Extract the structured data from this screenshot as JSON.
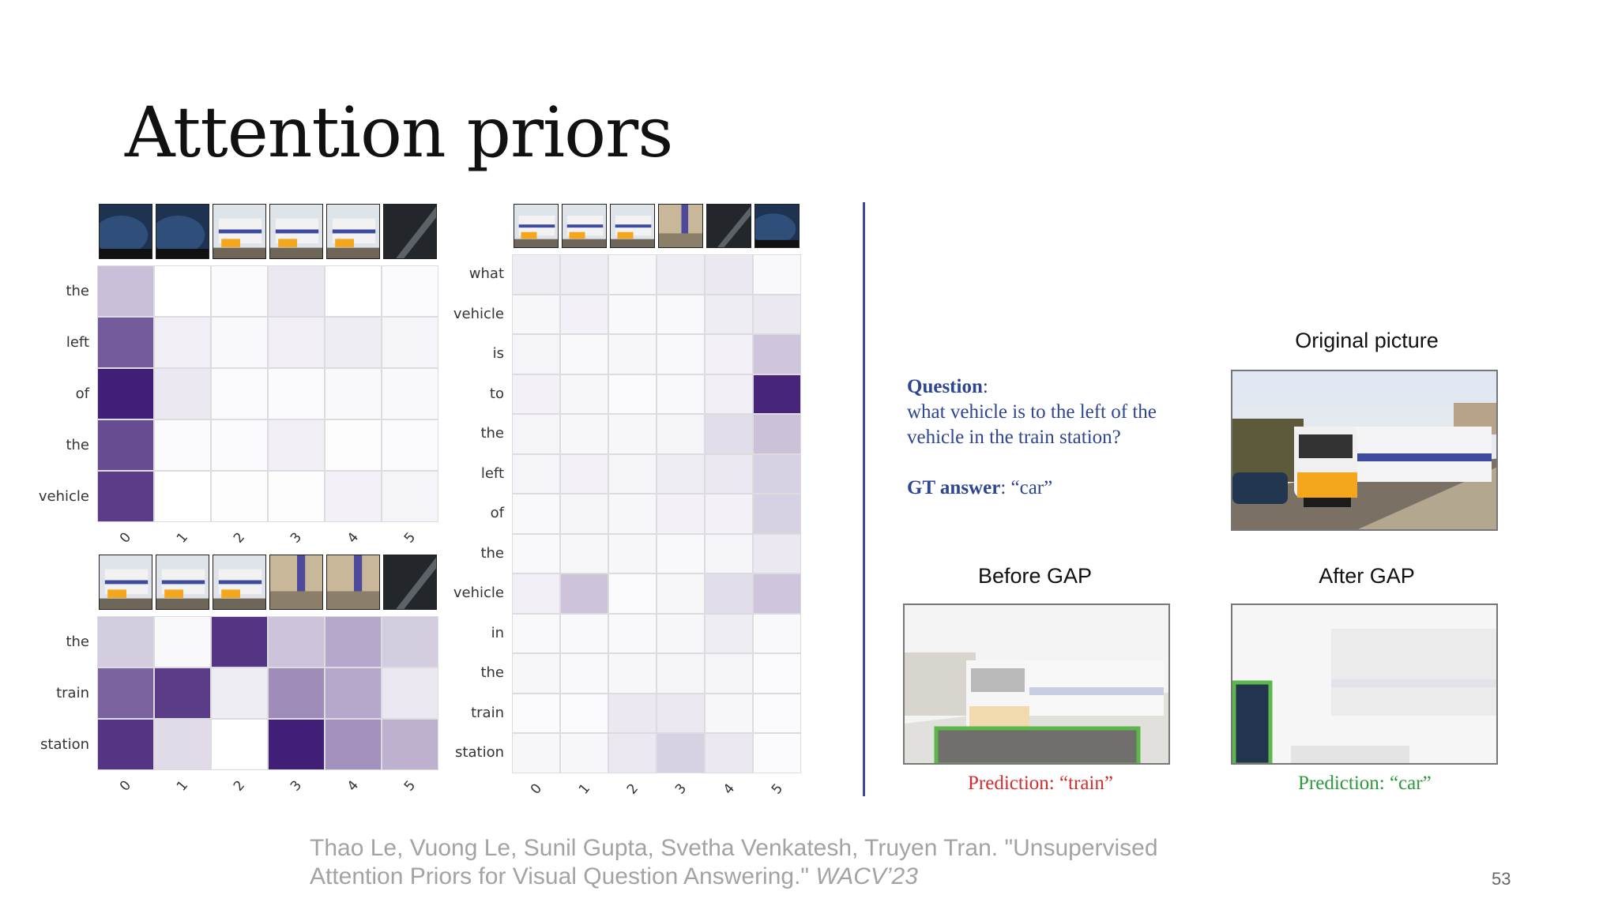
{
  "title": "Attention priors",
  "heatmaps": {
    "top_left": {
      "rows": [
        "the",
        "left",
        "of",
        "the",
        "vehicle"
      ],
      "cols": [
        "0",
        "1",
        "2",
        "3",
        "4",
        "5"
      ],
      "thumbs": [
        "car",
        "car",
        "train",
        "train",
        "train",
        "dark"
      ],
      "values": [
        [
          0.28,
          0.0,
          0.02,
          0.1,
          0.0,
          0.02
        ],
        [
          0.72,
          0.07,
          0.03,
          0.07,
          0.08,
          0.05
        ],
        [
          0.98,
          0.1,
          0.02,
          0.02,
          0.03,
          0.03
        ],
        [
          0.78,
          0.02,
          0.02,
          0.07,
          0.01,
          0.02
        ],
        [
          0.85,
          0.0,
          0.01,
          0.01,
          0.06,
          0.05
        ]
      ]
    },
    "bottom_left": {
      "rows": [
        "the",
        "train",
        "station"
      ],
      "cols": [
        "0",
        "1",
        "2",
        "3",
        "4",
        "5"
      ],
      "thumbs": [
        "train",
        "train",
        "train",
        "platform",
        "platform",
        "dark"
      ],
      "values": [
        [
          0.22,
          0.03,
          0.88,
          0.26,
          0.38,
          0.22
        ],
        [
          0.68,
          0.85,
          0.08,
          0.5,
          0.38,
          0.1
        ],
        [
          0.88,
          0.16,
          0.0,
          0.98,
          0.48,
          0.34
        ]
      ]
    },
    "middle": {
      "rows": [
        "what",
        "vehicle",
        "is",
        "to",
        "the",
        "left",
        "of",
        "the",
        "vehicle",
        "in",
        "the",
        "train",
        "station"
      ],
      "cols": [
        "0",
        "1",
        "2",
        "3",
        "4",
        "5"
      ],
      "thumbs": [
        "train",
        "train",
        "train",
        "platform",
        "dark",
        "car"
      ],
      "values": [
        [
          0.08,
          0.08,
          0.04,
          0.08,
          0.1,
          0.03
        ],
        [
          0.04,
          0.06,
          0.03,
          0.03,
          0.08,
          0.1
        ],
        [
          0.05,
          0.03,
          0.04,
          0.03,
          0.06,
          0.25
        ],
        [
          0.06,
          0.04,
          0.02,
          0.03,
          0.07,
          0.95
        ],
        [
          0.05,
          0.04,
          0.04,
          0.05,
          0.15,
          0.27
        ],
        [
          0.05,
          0.06,
          0.05,
          0.08,
          0.1,
          0.2
        ],
        [
          0.03,
          0.05,
          0.04,
          0.06,
          0.06,
          0.2
        ],
        [
          0.03,
          0.04,
          0.04,
          0.03,
          0.05,
          0.1
        ],
        [
          0.07,
          0.26,
          0.02,
          0.04,
          0.15,
          0.25
        ],
        [
          0.03,
          0.03,
          0.03,
          0.04,
          0.08,
          0.03
        ],
        [
          0.04,
          0.03,
          0.04,
          0.05,
          0.05,
          0.02
        ],
        [
          0.02,
          0.02,
          0.1,
          0.1,
          0.04,
          0.02
        ],
        [
          0.04,
          0.04,
          0.1,
          0.2,
          0.1,
          0.02
        ]
      ]
    }
  },
  "question": {
    "label": "Question",
    "text": "what vehicle is to the left of the vehicle in the train station?",
    "gt_label": "GT answer",
    "gt_value": ": “car”"
  },
  "panels": {
    "original": "Original picture",
    "before": "Before GAP",
    "after": "After GAP"
  },
  "predictions": {
    "before": "Prediction: “train”",
    "after": "Prediction: “car”"
  },
  "colors": {
    "heat": "#3d1a73",
    "question": "#2e4594",
    "pred_bad": "#d32f2f",
    "pred_good": "#2e9a3c",
    "box": "#5cb84a"
  },
  "citation": {
    "text": "Thao Le, Vuong Le, Sunil Gupta, Svetha Venkatesh, Truyen Tran. \"Unsupervised Attention Priors for Visual Question Answering.\"",
    "venue": "WACV’23"
  },
  "page_number": "53"
}
